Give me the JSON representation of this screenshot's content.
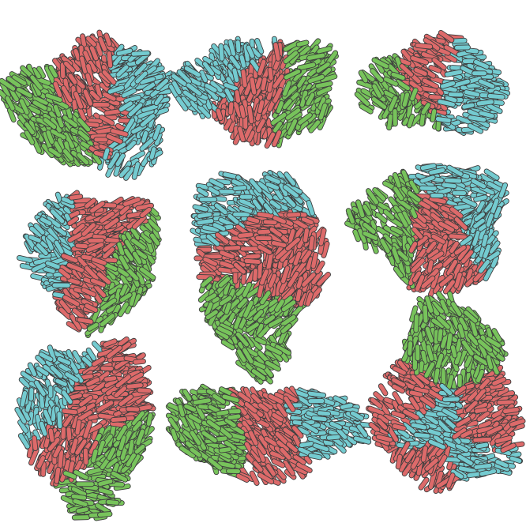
{
  "title": "",
  "palette": {
    "red": "#dd6a6a",
    "green": "#77c35b",
    "blue": "#74cbd0",
    "outline": "#3e3e3e",
    "background": "#ffffff"
  },
  "colonies": [
    {
      "label": "",
      "composition": [
        "green",
        "red",
        "blue"
      ]
    },
    {
      "label": "",
      "composition": [
        "blue",
        "red",
        "green"
      ]
    },
    {
      "label": "",
      "composition": [
        "green",
        "red",
        "blue"
      ]
    },
    {
      "label": "",
      "composition": [
        "blue",
        "red",
        "green"
      ]
    },
    {
      "label": "",
      "composition": [
        "blue",
        "red",
        "green"
      ]
    },
    {
      "label": "",
      "composition": [
        "green",
        "red",
        "blue"
      ]
    },
    {
      "label": "",
      "composition": [
        "blue",
        "red",
        "green"
      ]
    },
    {
      "label": "",
      "composition": [
        "green",
        "red",
        "blue"
      ]
    },
    {
      "label": "",
      "composition": [
        "green",
        "red",
        "blue"
      ]
    }
  ]
}
